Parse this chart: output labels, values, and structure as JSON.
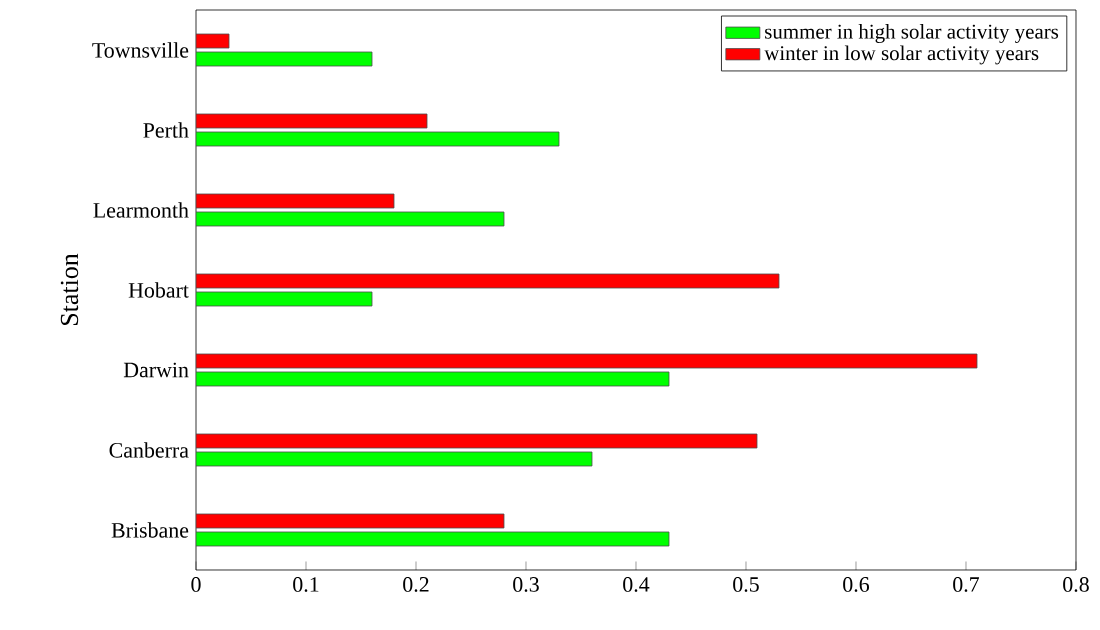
{
  "chart_data": {
    "type": "bar",
    "orientation": "horizontal",
    "ylabel": "Station",
    "categories": [
      "Townsville",
      "Perth",
      "Learmonth",
      "Hobart",
      "Darwin",
      "Canberra",
      "Brisbane"
    ],
    "series": [
      {
        "name": "summer in high solar activity years",
        "color": "#00ff00",
        "values": [
          0.16,
          0.33,
          0.28,
          0.16,
          0.43,
          0.36,
          0.43
        ]
      },
      {
        "name": "winter in low solar activity years",
        "color": "#ff0000",
        "values": [
          0.03,
          0.21,
          0.18,
          0.53,
          0.71,
          0.51,
          0.28
        ]
      }
    ],
    "xlim": [
      0,
      0.8
    ],
    "xticks": [
      0,
      0.1,
      0.2,
      0.3,
      0.4,
      0.5,
      0.6,
      0.7,
      0.8
    ],
    "grid": false,
    "legend": "top right"
  }
}
